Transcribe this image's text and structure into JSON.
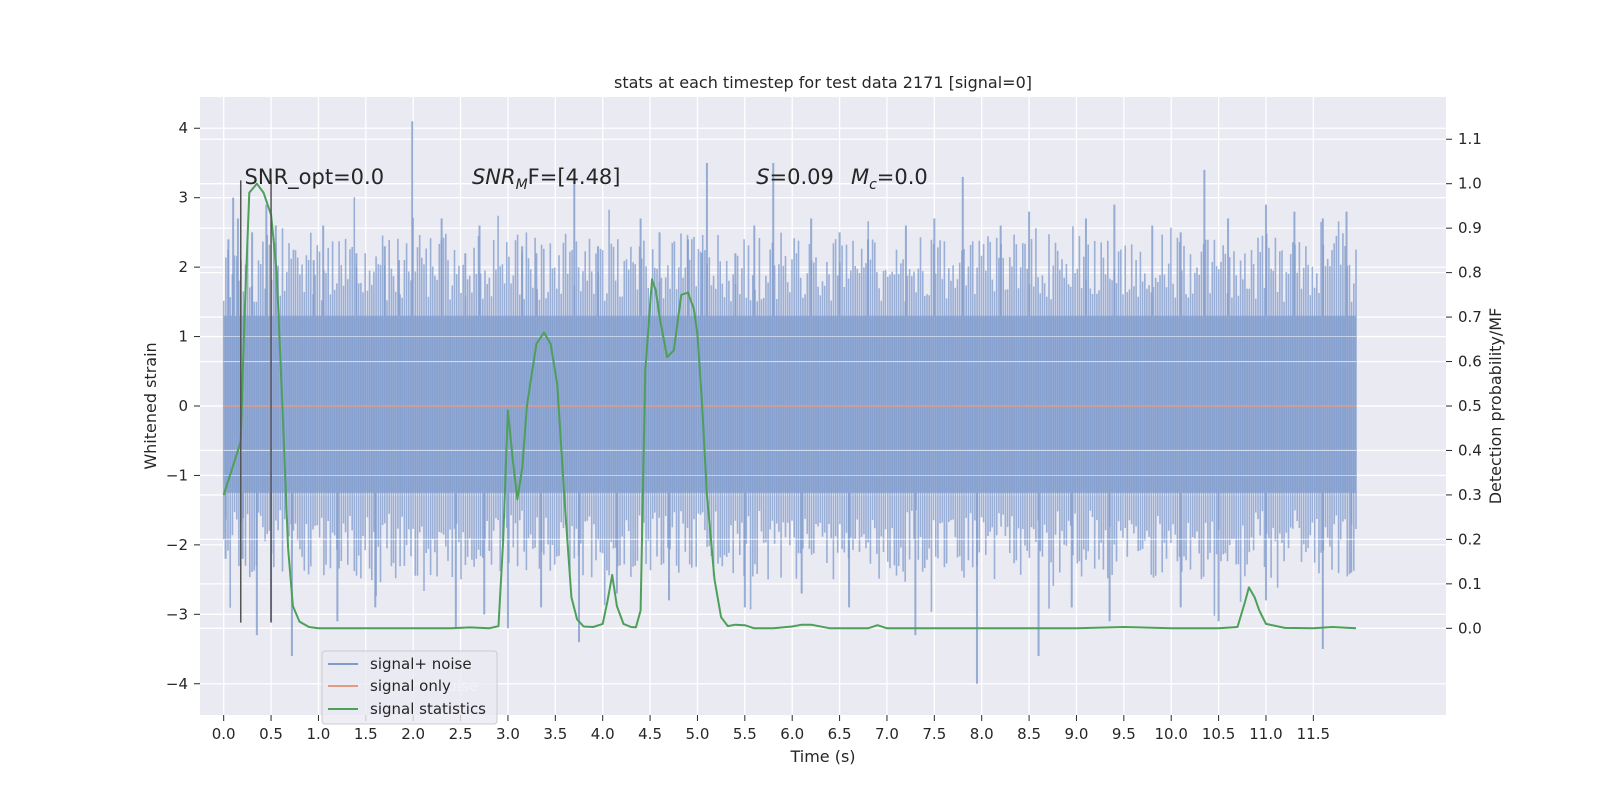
{
  "chart_data": {
    "type": "line",
    "title": "stats at each timestep for test data 2171 [signal=0]",
    "xlabel": "Time (s)",
    "ylabel": "Whitened strain",
    "y2label": "Detection probability/MF",
    "xlim": [
      -0.25,
      12.9
    ],
    "ylim": [
      -4.45,
      4.45
    ],
    "y2lim": [
      -0.195,
      1.195
    ],
    "x_ticks": [
      "0.0",
      "0.5",
      "1.0",
      "1.5",
      "2.0",
      "2.5",
      "3.0",
      "3.5",
      "4.0",
      "4.5",
      "5.0",
      "5.5",
      "6.0",
      "6.5",
      "7.0",
      "7.5",
      "8.0",
      "8.5",
      "9.0",
      "9.5",
      "10.0",
      "10.5",
      "11.0",
      "11.5"
    ],
    "y_ticks": [
      -4,
      -3,
      -2,
      -1,
      0,
      1,
      2,
      3,
      4
    ],
    "y2_ticks": [
      "0.0",
      "0.1",
      "0.2",
      "0.3",
      "0.4",
      "0.5",
      "0.6",
      "0.7",
      "0.8",
      "0.9",
      "1.0",
      "1.1"
    ],
    "grid": true,
    "legend_position": "lower-left",
    "annotations": [
      {
        "id": "snr-opt",
        "text": "SNR_opt=0.0",
        "x": 0.22
      },
      {
        "id": "snr-mf",
        "base": "SNR",
        "sub": "M",
        "rest": "F=[4.48]",
        "x": 2.62
      },
      {
        "id": "s-stat",
        "base": "S",
        "rest": "=0.09",
        "x": 5.62
      },
      {
        "id": "mc-stat",
        "base": "M",
        "sub": "c",
        "rest": "=0.0",
        "x": 6.62
      }
    ],
    "annotation_y": 3.2,
    "vertical_markers": {
      "x": [
        0.18,
        0.5
      ],
      "y_from": -3.12,
      "y_to": 3.25,
      "color": "#555555"
    },
    "noise_envelope": {
      "x_start": 0.0,
      "x_end": 11.95,
      "core_upper": 1.3,
      "core_lower": -1.25,
      "spikes_upper": [
        {
          "x": 0.05,
          "y": 2.4
        },
        {
          "x": 0.1,
          "y": 3.0
        },
        {
          "x": 0.15,
          "y": 2.7
        },
        {
          "x": 0.3,
          "y": 2.5
        },
        {
          "x": 0.45,
          "y": 2.9
        },
        {
          "x": 0.55,
          "y": 2.6
        },
        {
          "x": 0.95,
          "y": 2.1
        },
        {
          "x": 1.05,
          "y": 2.6
        },
        {
          "x": 1.4,
          "y": 2.2
        },
        {
          "x": 1.7,
          "y": 2.3
        },
        {
          "x": 1.85,
          "y": 2.1
        },
        {
          "x": 1.99,
          "y": 4.1
        },
        {
          "x": 2.3,
          "y": 2.7
        },
        {
          "x": 2.55,
          "y": 2.2
        },
        {
          "x": 2.7,
          "y": 2.6
        },
        {
          "x": 3.15,
          "y": 2.3
        },
        {
          "x": 3.3,
          "y": 2.2
        },
        {
          "x": 3.7,
          "y": 3.3
        },
        {
          "x": 3.95,
          "y": 2.3
        },
        {
          "x": 4.4,
          "y": 2.7
        },
        {
          "x": 4.6,
          "y": 2.5
        },
        {
          "x": 4.9,
          "y": 2.4
        },
        {
          "x": 5.05,
          "y": 2.2
        },
        {
          "x": 5.1,
          "y": 3.5
        },
        {
          "x": 5.4,
          "y": 2.2
        },
        {
          "x": 5.6,
          "y": 2.6
        },
        {
          "x": 5.8,
          "y": 3.5
        },
        {
          "x": 6.2,
          "y": 2.7
        },
        {
          "x": 6.5,
          "y": 2.5
        },
        {
          "x": 6.8,
          "y": 2.4
        },
        {
          "x": 7.2,
          "y": 2.6
        },
        {
          "x": 7.5,
          "y": 2.7
        },
        {
          "x": 7.8,
          "y": 3.3
        },
        {
          "x": 8.2,
          "y": 2.6
        },
        {
          "x": 8.5,
          "y": 2.8
        },
        {
          "x": 9.1,
          "y": 2.7
        },
        {
          "x": 9.4,
          "y": 2.9
        },
        {
          "x": 9.8,
          "y": 2.6
        },
        {
          "x": 10.1,
          "y": 2.5
        },
        {
          "x": 10.35,
          "y": 3.4
        },
        {
          "x": 10.6,
          "y": 2.7
        },
        {
          "x": 11.0,
          "y": 2.9
        },
        {
          "x": 11.3,
          "y": 2.8
        },
        {
          "x": 11.6,
          "y": 2.7
        },
        {
          "x": 11.85,
          "y": 2.8
        }
      ],
      "spikes_lower": [
        {
          "x": 0.02,
          "y": -2.2
        },
        {
          "x": 0.2,
          "y": -2.2
        },
        {
          "x": 0.35,
          "y": -3.3
        },
        {
          "x": 0.5,
          "y": -3.1
        },
        {
          "x": 0.72,
          "y": -3.6
        },
        {
          "x": 1.2,
          "y": -3.1
        },
        {
          "x": 1.6,
          "y": -2.9
        },
        {
          "x": 2.45,
          "y": -3.2
        },
        {
          "x": 2.75,
          "y": -3.0
        },
        {
          "x": 3.0,
          "y": -3.2
        },
        {
          "x": 3.35,
          "y": -2.9
        },
        {
          "x": 3.75,
          "y": -3.4
        },
        {
          "x": 4.15,
          "y": -2.7
        },
        {
          "x": 4.7,
          "y": -2.8
        },
        {
          "x": 5.5,
          "y": -2.9
        },
        {
          "x": 6.1,
          "y": -2.7
        },
        {
          "x": 6.6,
          "y": -2.9
        },
        {
          "x": 7.3,
          "y": -3.3
        },
        {
          "x": 7.95,
          "y": -4.0
        },
        {
          "x": 8.6,
          "y": -3.6
        },
        {
          "x": 8.95,
          "y": -2.9
        },
        {
          "x": 9.35,
          "y": -3.1
        },
        {
          "x": 10.1,
          "y": -2.9
        },
        {
          "x": 10.5,
          "y": -3.1
        },
        {
          "x": 11.0,
          "y": -2.8
        },
        {
          "x": 11.6,
          "y": -3.5
        },
        {
          "x": 11.9,
          "y": -2.4
        }
      ]
    },
    "series": [
      {
        "name": "signal+ noise",
        "color": "#7f9bcc",
        "role": "noise"
      },
      {
        "name": "signal only",
        "color": "#e39a84",
        "role": "signal",
        "x": [
          0.0,
          11.95
        ],
        "y": [
          0.0,
          0.0
        ]
      },
      {
        "name": "signal statistics",
        "color": "#4e9f59",
        "role": "stat",
        "axis": "right",
        "x": [
          0.0,
          0.12,
          0.18,
          0.22,
          0.27,
          0.35,
          0.42,
          0.5,
          0.56,
          0.62,
          0.68,
          0.73,
          0.8,
          0.9,
          1.0,
          1.2,
          1.4,
          1.6,
          1.8,
          2.0,
          2.2,
          2.4,
          2.6,
          2.8,
          2.9,
          2.95,
          3.0,
          3.05,
          3.1,
          3.15,
          3.2,
          3.3,
          3.38,
          3.45,
          3.52,
          3.6,
          3.67,
          3.73,
          3.8,
          3.9,
          4.0,
          4.05,
          4.1,
          4.15,
          4.22,
          4.3,
          4.35,
          4.4,
          4.45,
          4.52,
          4.56,
          4.6,
          4.68,
          4.75,
          4.83,
          4.9,
          4.96,
          5.0,
          5.05,
          5.1,
          5.18,
          5.25,
          5.32,
          5.4,
          5.5,
          5.6,
          5.8,
          6.0,
          6.1,
          6.2,
          6.4,
          6.6,
          6.8,
          6.9,
          7.0,
          7.5,
          8.0,
          8.5,
          9.0,
          9.5,
          10.0,
          10.5,
          10.7,
          10.78,
          10.82,
          10.88,
          10.93,
          11.0,
          11.2,
          11.5,
          11.7,
          11.95
        ],
        "y": [
          0.3,
          0.38,
          0.42,
          0.7,
          0.98,
          1.0,
          0.98,
          0.93,
          0.8,
          0.5,
          0.18,
          0.05,
          0.015,
          0.003,
          0.0,
          0.0,
          0.0,
          0.0,
          0.0,
          0.0,
          0.0,
          0.0,
          0.002,
          0.0,
          0.005,
          0.2,
          0.49,
          0.38,
          0.29,
          0.36,
          0.5,
          0.64,
          0.665,
          0.64,
          0.55,
          0.28,
          0.07,
          0.02,
          0.004,
          0.003,
          0.01,
          0.06,
          0.12,
          0.05,
          0.01,
          0.003,
          0.002,
          0.04,
          0.58,
          0.785,
          0.76,
          0.7,
          0.61,
          0.625,
          0.75,
          0.755,
          0.72,
          0.66,
          0.5,
          0.3,
          0.11,
          0.025,
          0.005,
          0.008,
          0.007,
          0.0,
          0.0,
          0.004,
          0.008,
          0.008,
          0.0,
          0.0,
          0.0,
          0.007,
          0.0,
          0.0,
          0.0,
          0.0,
          0.0,
          0.003,
          0.0,
          0.0,
          0.003,
          0.06,
          0.092,
          0.07,
          0.04,
          0.01,
          0.001,
          0.0,
          0.003,
          0.0
        ]
      }
    ],
    "legend_overlap_text": "noise",
    "colors": {
      "axes_bg": "#eaeaf2",
      "grid": "#ffffff",
      "noise": "#7f9bcc",
      "signal": "#e39a84",
      "stat": "#4e9f59",
      "text": "#262626"
    }
  }
}
